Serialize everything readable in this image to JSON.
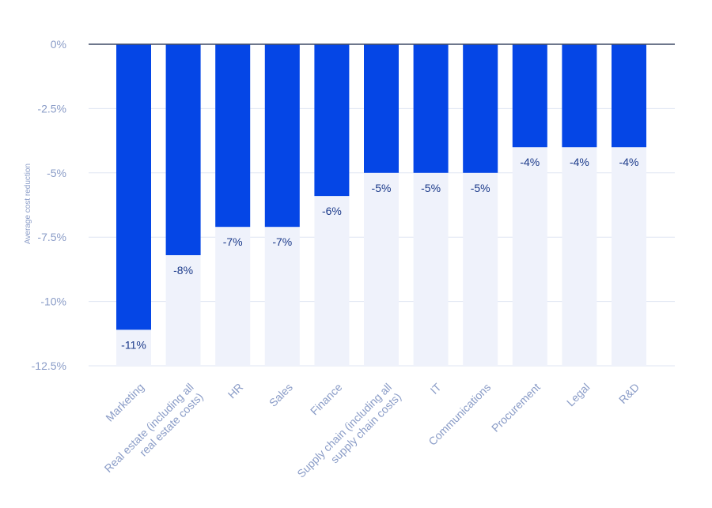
{
  "chart_data": {
    "type": "bar",
    "title": "",
    "xlabel": "",
    "ylabel": "Average cost reduction",
    "ylim": [
      -12.5,
      0
    ],
    "yticks": [
      0,
      -2.5,
      -5,
      -7.5,
      -10,
      -12.5
    ],
    "ytick_labels": [
      "0%",
      "-2.5%",
      "-5%",
      "-7.5%",
      "-10%",
      "-12.5%"
    ],
    "categories": [
      [
        "Marketing"
      ],
      [
        "Real estate (including all",
        "real estate costs)"
      ],
      [
        "HR"
      ],
      [
        "Sales"
      ],
      [
        "Finance"
      ],
      [
        "Supply chain (including all",
        "supply chain costs)"
      ],
      [
        "IT"
      ],
      [
        "Communications"
      ],
      [
        "Procurement"
      ],
      [
        "Legal"
      ],
      [
        "R&D"
      ]
    ],
    "values": [
      -11.1,
      -8.2,
      -7.1,
      -7.1,
      -5.9,
      -5.0,
      -5.0,
      -5.0,
      -4.0,
      -4.0,
      -4.0
    ],
    "data_labels": [
      "-11%",
      "-8%",
      "-7%",
      "-7%",
      "-6%",
      "-5%",
      "-5%",
      "-5%",
      "-4%",
      "-4%",
      "-4%"
    ],
    "grid": true,
    "colors": {
      "bar": "#0546e6",
      "track": "#eff2fb",
      "grid": "#dfe6f3",
      "axis": "#3e4a66",
      "tick_text": "#8a9cc7",
      "data_label_text": "#1b3a8a"
    }
  }
}
